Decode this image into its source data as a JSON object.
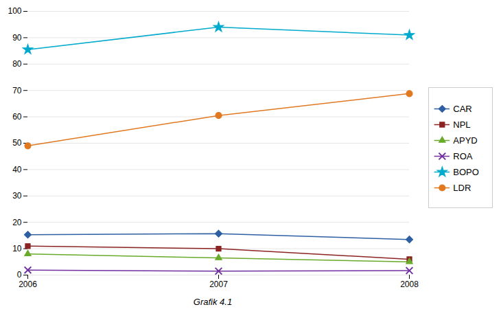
{
  "chart_data": {
    "type": "line",
    "title": "Grafik 4.1",
    "x": [
      2006,
      2007,
      2008
    ],
    "xlim": [
      2006,
      2008
    ],
    "xticks": [
      2006,
      2007,
      2008
    ],
    "ylim": [
      0,
      100
    ],
    "yticks": [
      0,
      10,
      20,
      30,
      40,
      50,
      60,
      70,
      80,
      90,
      100
    ],
    "grid": true,
    "legend": "right",
    "series": [
      {
        "name": "CAR",
        "color": "#2e5fa3",
        "marker": "diamond",
        "values": [
          15.3,
          15.7,
          13.5
        ]
      },
      {
        "name": "NPL",
        "color": "#8b2323",
        "marker": "square",
        "values": [
          11.0,
          10.0,
          6.0
        ]
      },
      {
        "name": "APYD",
        "color": "#6aaa2a",
        "marker": "triangle",
        "values": [
          8.0,
          6.5,
          5.0
        ]
      },
      {
        "name": "ROA",
        "color": "#7030a0",
        "marker": "x",
        "values": [
          1.9,
          1.5,
          1.7
        ]
      },
      {
        "name": "BOPO",
        "color": "#00aacc",
        "marker": "star",
        "values": [
          85.5,
          94.0,
          91.0
        ]
      },
      {
        "name": "LDR",
        "color": "#e07820",
        "marker": "circle",
        "values": [
          49.0,
          60.5,
          68.8
        ]
      }
    ]
  }
}
